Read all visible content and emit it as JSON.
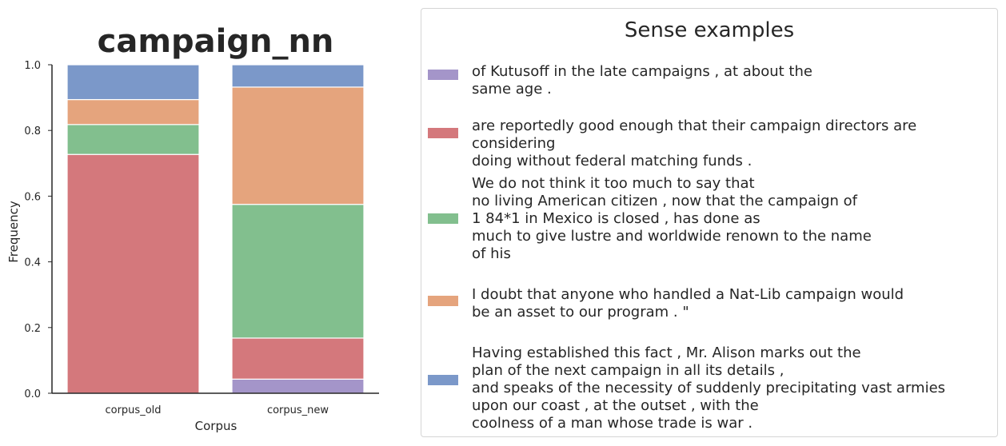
{
  "chart_data": {
    "type": "bar",
    "stacked": true,
    "title": "campaign_nn",
    "xlabel": "Corpus",
    "ylabel": "Frequency",
    "ylim": [
      0,
      1.0
    ],
    "yticks": [
      "0.0",
      "0.2",
      "0.4",
      "0.6",
      "0.8",
      "1.0"
    ],
    "categories": [
      "corpus_old",
      "corpus_new"
    ],
    "series": [
      {
        "color": "#a495c9",
        "values": [
          0.0,
          0.043
        ]
      },
      {
        "color": "#d4787c",
        "values": [
          0.727,
          0.125
        ]
      },
      {
        "color": "#82bf8e",
        "values": [
          0.091,
          0.407
        ]
      },
      {
        "color": "#e5a47d",
        "values": [
          0.076,
          0.357
        ]
      },
      {
        "color": "#7b98c9",
        "values": [
          0.106,
          0.068
        ]
      }
    ],
    "legend": {
      "title": "Sense examples",
      "placement": "right",
      "entries": [
        {
          "color": "#a495c9",
          "label": "of Kutusoff in the late campaigns , at about the\nsame age ."
        },
        {
          "color": "#d4787c",
          "label": "are reportedly good enough that their campaign directors are considering\ndoing without federal matching funds ."
        },
        {
          "color": "#82bf8e",
          "label": "We do not think it too much to say that\nno living American citizen , now that the campaign of\n1 84*1 in Mexico is closed , has done as\nmuch to give lustre and worldwide renown to the name\nof his"
        },
        {
          "color": "#e5a47d",
          "label": "I doubt that anyone who handled a Nat-Lib campaign would\nbe an asset to our program . \""
        },
        {
          "color": "#7b98c9",
          "label": "Having established this fact , Mr. Alison marks out the\nplan of the next campaign in all its details ,\nand speaks of the necessity of suddenly precipitating vast armies\nupon our coast , at the outset , with the\ncoolness of a man whose trade is war ."
        }
      ]
    }
  }
}
